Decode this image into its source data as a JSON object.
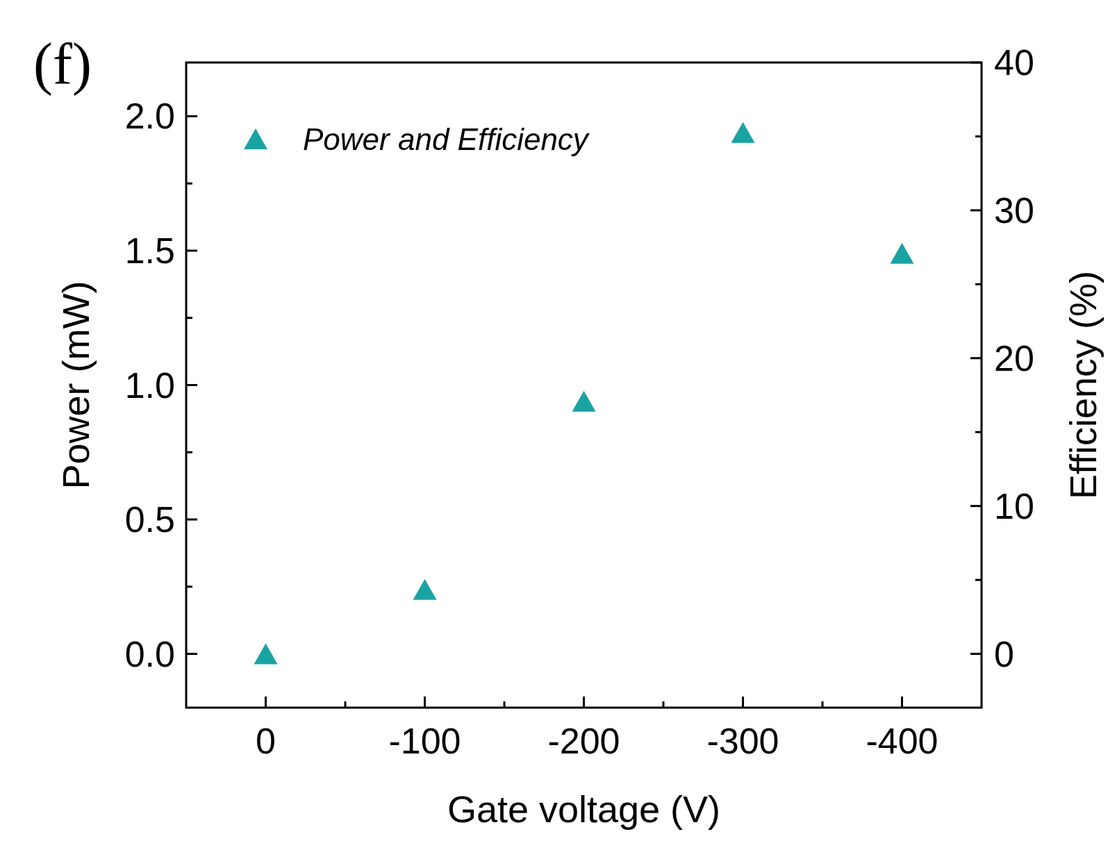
{
  "chart_data": {
    "type": "scatter",
    "xlabel": "Gate voltage (V)",
    "ylabel": "Power (mW)",
    "y2label": "Efficiency (%)",
    "annotations": [
      "(f)"
    ],
    "x": [
      0,
      -100,
      -200,
      -300,
      -400
    ],
    "series": [
      {
        "name": "Power and Efficiency",
        "color": "#1aa3a3",
        "values": [
          0.0,
          0.24,
          0.94,
          1.94,
          1.49
        ]
      }
    ],
    "xlim": [
      50,
      -450
    ],
    "xticks": [
      0,
      {
        "value": -50,
        "label": null
      },
      -100,
      {
        "value": -150,
        "label": null
      },
      -200,
      {
        "value": -250,
        "label": null
      },
      -300,
      {
        "value": -350,
        "label": null
      },
      -400
    ],
    "ylim": [
      -0.2,
      2.2
    ],
    "yticks": [
      "0.0",
      {
        "value": 0.25,
        "label": null
      },
      {
        "value": 0.5,
        "label": "0.5"
      },
      {
        "value": 0.75,
        "label": null
      },
      {
        "value": 1,
        "label": "1.0"
      },
      {
        "value": 1.25,
        "label": null
      },
      {
        "value": 1.5,
        "label": "1.5"
      },
      {
        "value": 1.75,
        "label": null
      },
      {
        "value": 2,
        "label": "2.0"
      }
    ],
    "y2lim": [
      -3.64,
      40
    ],
    "y2ticks": [
      0,
      {
        "value": 5,
        "label": null
      },
      10,
      {
        "value": 15,
        "label": null
      },
      20,
      {
        "value": 25,
        "label": null
      },
      30,
      {
        "value": 35,
        "label": null
      },
      40
    ],
    "marker": "triangle",
    "legend": "top left",
    "grid": false
  }
}
